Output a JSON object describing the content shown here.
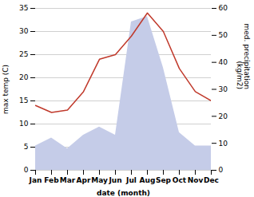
{
  "chart_data": {
    "type": "line",
    "categories": [
      "Jan",
      "Feb",
      "Mar",
      "Apr",
      "May",
      "Jun",
      "Jul",
      "Aug",
      "Sep",
      "Oct",
      "Nov",
      "Dec"
    ],
    "xlabel": "date (month)",
    "ylabel": "max temp (C)",
    "y2label": "med. precipitation\n(kg/m2)",
    "series": [
      {
        "type": "area",
        "axis": "y2",
        "color": "#c5cce8",
        "values": [
          9.0,
          12.0,
          8.0,
          13.0,
          16.0,
          13.0,
          55.0,
          57.0,
          38.0,
          14.0,
          9.0,
          9.0
        ]
      },
      {
        "type": "line",
        "color": "#c0392b",
        "values": [
          14.0,
          12.5,
          13.0,
          17.0,
          24.0,
          25.0,
          29.0,
          34.0,
          30.0,
          22.0,
          17.0,
          15.0
        ]
      }
    ],
    "ylim": [
      0,
      35
    ],
    "yticks": [
      0,
      5,
      10,
      15,
      20,
      25,
      30,
      35
    ],
    "y2lim": [
      0,
      60
    ],
    "y2ticks": [
      0,
      10,
      20,
      30,
      40,
      50,
      60
    ],
    "grid": true
  }
}
